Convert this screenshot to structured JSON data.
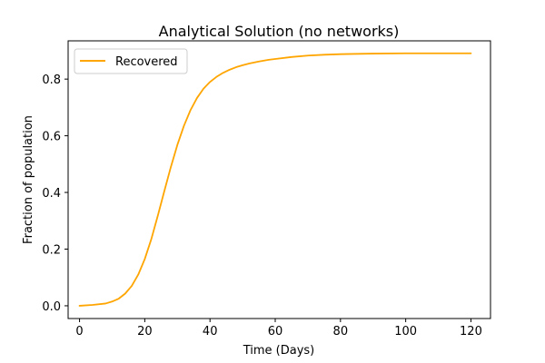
{
  "chart_data": {
    "type": "line",
    "title": "Analytical Solution (no networks)",
    "xlabel": "Time (Days)",
    "ylabel": "Fraction of population",
    "xlim": [
      -3.5,
      126
    ],
    "ylim": [
      -0.045,
      0.935
    ],
    "xticks": [
      0,
      20,
      40,
      60,
      80,
      100,
      120
    ],
    "yticks": [
      0.0,
      0.2,
      0.4,
      0.6,
      0.8
    ],
    "ytick_labels": [
      "0.0",
      "0.2",
      "0.4",
      "0.6",
      "0.8"
    ],
    "grid": false,
    "legend_position": "upper-left",
    "series": [
      {
        "name": "Recovered",
        "color": "#ffa500",
        "x": [
          0,
          4,
          8,
          10,
          12,
          14,
          16,
          18,
          20,
          22,
          24,
          26,
          28,
          30,
          32,
          34,
          36,
          38,
          40,
          42,
          44,
          46,
          48,
          50,
          52,
          55,
          58,
          60,
          65,
          70,
          75,
          80,
          90,
          100,
          110,
          120
        ],
        "y": [
          0.0,
          0.003,
          0.008,
          0.015,
          0.025,
          0.043,
          0.07,
          0.11,
          0.165,
          0.235,
          0.318,
          0.405,
          0.49,
          0.568,
          0.635,
          0.69,
          0.733,
          0.766,
          0.79,
          0.808,
          0.822,
          0.833,
          0.842,
          0.849,
          0.855,
          0.862,
          0.868,
          0.871,
          0.878,
          0.883,
          0.886,
          0.888,
          0.89,
          0.891,
          0.891,
          0.891
        ]
      }
    ]
  }
}
